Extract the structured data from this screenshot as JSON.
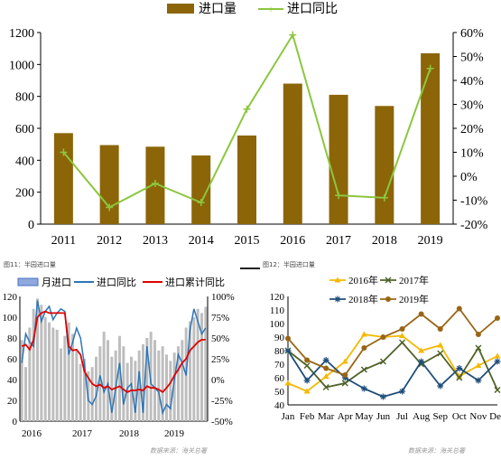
{
  "chart_data": [
    {
      "type": "bar+line",
      "legend": [
        "进口量",
        "进口同比"
      ],
      "categories": [
        "2011",
        "2012",
        "2013",
        "2014",
        "2015",
        "2016",
        "2017",
        "2018",
        "2019"
      ],
      "bar_values": [
        570,
        495,
        485,
        430,
        555,
        880,
        810,
        740,
        1070
      ],
      "line_values": [
        10,
        -13,
        -3,
        -11,
        28,
        59,
        -8,
        -9,
        45
      ],
      "ylim": [
        0,
        1200
      ],
      "y_ticks": [
        "0",
        "200",
        "400",
        "600",
        "800",
        "1000",
        "1200"
      ],
      "y2lim": [
        -20,
        60
      ],
      "y2_ticks": [
        "-20%",
        "-10%",
        "0%",
        "10%",
        "20%",
        "30%",
        "40%",
        "50%",
        "60%"
      ],
      "colors": {
        "bar": "#8B6508",
        "line": "#8CC63F"
      },
      "legend_position": "top"
    },
    {
      "type": "bar+line",
      "legend": [
        "月进口",
        "进口同比",
        "进口累计同比"
      ],
      "x_labels": [
        "2016",
        "2017",
        "2018",
        "2019"
      ],
      "ylim": [
        0,
        120
      ],
      "y_ticks": [
        "0",
        "20",
        "40",
        "60",
        "80",
        "100",
        "120"
      ],
      "y2lim": [
        -50,
        100
      ],
      "y2_ticks": [
        "-50%",
        "-25%",
        "0%",
        "25%",
        "50%",
        "75%",
        "100%"
      ],
      "bar_values": [
        78,
        52,
        90,
        108,
        118,
        112,
        100,
        95,
        90,
        88,
        70,
        82,
        95,
        84,
        68,
        55,
        60,
        48,
        52,
        62,
        72,
        86,
        78,
        62,
        68,
        82,
        72,
        56,
        62,
        58,
        68,
        74,
        80,
        86,
        78,
        68,
        72,
        64,
        58,
        66,
        72,
        78,
        90,
        96,
        100,
        108,
        104,
        110
      ],
      "line_values": [
        20,
        55,
        45,
        40,
        95,
        70,
        82,
        88,
        72,
        80,
        85,
        82,
        30,
        45,
        62,
        50,
        18,
        -25,
        -30,
        -20,
        5,
        -15,
        -5,
        -40,
        -10,
        20,
        -30,
        -10,
        -5,
        -40,
        10,
        -40,
        40,
        -5,
        -10,
        -15,
        -40,
        -30,
        -35,
        0,
        30,
        20,
        5,
        60,
        85,
        70,
        55,
        62
      ],
      "cum_line_values": [
        40,
        42,
        36,
        48,
        75,
        80,
        82,
        80,
        80,
        80,
        80,
        80,
        40,
        35,
        36,
        30,
        10,
        2,
        -5,
        -8,
        -6,
        -10,
        -8,
        -12,
        -10,
        -8,
        -12,
        -15,
        -13,
        -13,
        -12,
        -13,
        -8,
        -10,
        -10,
        -12,
        -15,
        -10,
        -4,
        5,
        12,
        20,
        25,
        35,
        40,
        45,
        48,
        48
      ],
      "colors": {
        "bar": "#BEBEBE",
        "line": "#2E75B6",
        "cum_line": "#E00000"
      },
      "legend_position": "top"
    },
    {
      "type": "line",
      "categories": [
        "Jan",
        "Feb",
        "Mar",
        "Apr",
        "May",
        "Jun",
        "Jul",
        "Aug",
        "Sep",
        "Oct",
        "Nov",
        "Dec"
      ],
      "series": [
        {
          "name": "2016年",
          "color": "#F5B800",
          "values": [
            56,
            50,
            61,
            72,
            92,
            90,
            91,
            80,
            84,
            61,
            69,
            76
          ]
        },
        {
          "name": "2017年",
          "color": "#4F6228",
          "values": [
            80,
            69,
            53,
            56,
            66,
            72,
            86,
            70,
            78,
            60,
            82,
            51
          ]
        },
        {
          "name": "2018年",
          "color": "#1F4E79",
          "values": [
            80,
            58,
            73,
            60,
            52,
            46,
            50,
            72,
            54,
            67,
            58,
            72
          ]
        },
        {
          "name": "2019年",
          "color": "#996515",
          "values": [
            89,
            73,
            67,
            62,
            82,
            90,
            96,
            107,
            96,
            111,
            92,
            104
          ]
        }
      ],
      "ylim": [
        40,
        120
      ],
      "y_ticks": [
        "40",
        "50",
        "60",
        "70",
        "80",
        "90",
        "100",
        "110",
        "120"
      ],
      "legend_position": "top"
    }
  ],
  "captions": {
    "left": "图11：半园进口量",
    "right": "图12：半园进口量"
  },
  "sources": {
    "left": "数据来源：海关总署",
    "right": "数据来源：海关总署"
  }
}
